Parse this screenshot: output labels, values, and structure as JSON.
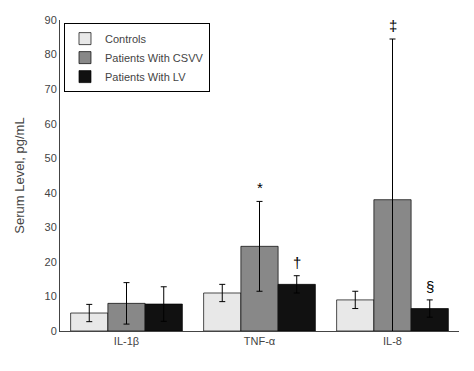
{
  "chart_data": {
    "type": "bar",
    "ylabel": "Serum Level, pg/mL",
    "categories": [
      "IL-1β",
      "TNF-α",
      "IL-8"
    ],
    "series": [
      {
        "name": "Controls",
        "color": "#e8e8e8",
        "values": [
          5.2,
          11.0,
          9.0
        ],
        "errors": [
          2.5,
          2.5,
          2.5
        ]
      },
      {
        "name": "Patients With CSVV",
        "color": "#888888",
        "values": [
          8.0,
          24.5,
          38.0
        ],
        "errors": [
          6.0,
          13.0,
          46.5
        ]
      },
      {
        "name": "Patients With LV",
        "color": "#111111",
        "values": [
          7.8,
          13.5,
          6.5
        ],
        "errors": [
          5.0,
          2.5,
          2.5
        ]
      }
    ],
    "annotations": [
      {
        "text": "*",
        "category": "TNF-α",
        "series": "Patients With CSVV"
      },
      {
        "text": "†",
        "category": "TNF-α",
        "series": "Patients With LV"
      },
      {
        "text": "‡",
        "category": "IL-8",
        "series": "Patients With CSVV"
      },
      {
        "text": "§",
        "category": "IL-8",
        "series": "Patients With LV"
      }
    ],
    "ylim": [
      0,
      90
    ],
    "yticks": [
      0,
      10,
      20,
      30,
      40,
      50,
      60,
      70,
      80,
      90
    ],
    "grid": false,
    "legend": "upper left"
  }
}
